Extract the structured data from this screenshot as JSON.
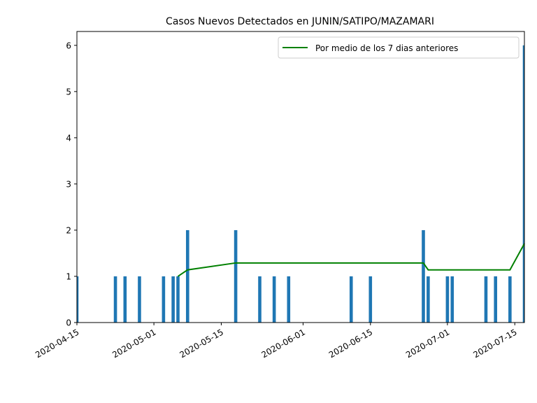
{
  "chart_data": {
    "type": "bar",
    "title": "Casos Nuevos Detectados en JUNIN/SATIPO/MAZAMARI",
    "xlabel": "",
    "ylabel": "",
    "ylim": [
      0,
      6.3
    ],
    "xlim": [
      "2020-04-15",
      "2020-07-17"
    ],
    "yticks": [
      0,
      1,
      2,
      3,
      4,
      5,
      6
    ],
    "xticks": [
      "2020-04-15",
      "2020-05-01",
      "2020-05-15",
      "2020-06-01",
      "2020-06-15",
      "2020-07-01",
      "2020-07-15"
    ],
    "grid": false,
    "legend_position": "top-right",
    "series": [
      {
        "type": "bar",
        "color": "#1f77b4",
        "x": [
          "2020-04-15",
          "2020-04-23",
          "2020-04-25",
          "2020-04-28",
          "2020-05-03",
          "2020-05-05",
          "2020-05-06",
          "2020-05-08",
          "2020-05-18",
          "2020-05-23",
          "2020-05-26",
          "2020-05-29",
          "2020-06-11",
          "2020-06-15",
          "2020-06-26",
          "2020-06-27",
          "2020-07-01",
          "2020-07-02",
          "2020-07-09",
          "2020-07-11",
          "2020-07-14",
          "2020-07-17"
        ],
        "values": [
          1,
          1,
          1,
          1,
          1,
          1,
          1,
          2,
          2,
          1,
          1,
          1,
          1,
          1,
          2,
          1,
          1,
          1,
          1,
          1,
          1,
          6
        ]
      },
      {
        "type": "line",
        "name": "Por medio de los 7 dias anteriores",
        "color": "#008000",
        "x": [
          "2020-05-06",
          "2020-05-08",
          "2020-05-18",
          "2020-06-26",
          "2020-06-27",
          "2020-07-14",
          "2020-07-17"
        ],
        "values": [
          1.0,
          1.14,
          1.29,
          1.29,
          1.14,
          1.14,
          1.71
        ]
      }
    ]
  }
}
